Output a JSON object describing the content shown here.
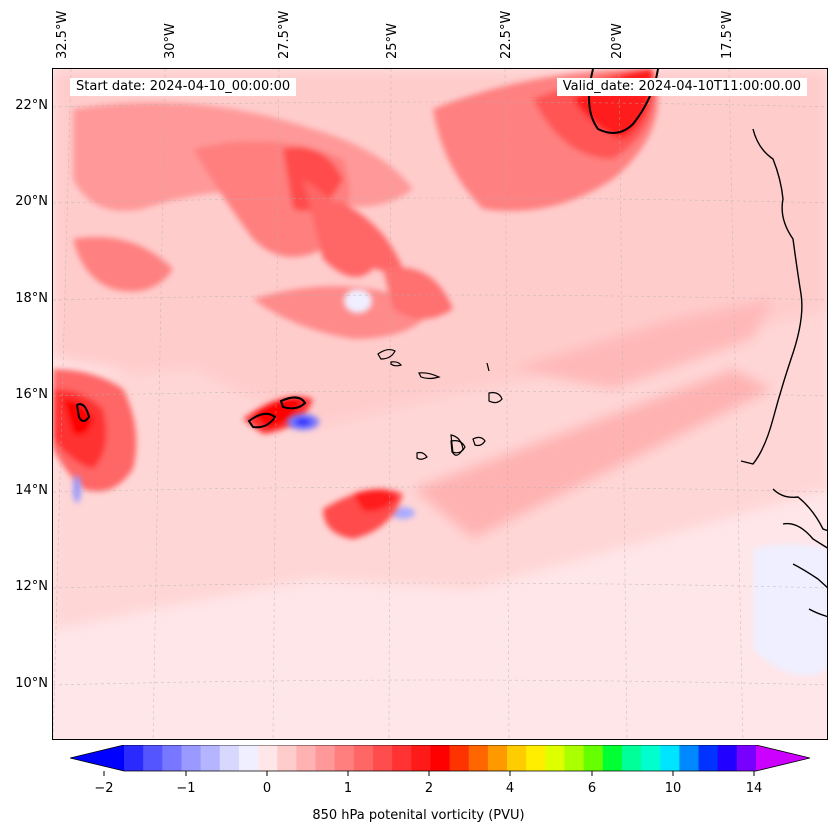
{
  "map": {
    "start_date": "Start date: 2024-04-10_00:00:00",
    "valid_date": "Valid_date: 2024-04-10T11:00:00.00",
    "lon_labels": [
      "32.5°W",
      "30°W",
      "27.5°W",
      "25°W",
      "22.5°W",
      "20°W",
      "17.5°W"
    ],
    "lat_labels": [
      "22°N",
      "20°N",
      "18°N",
      "16°N",
      "14°N",
      "12°N",
      "10°N"
    ],
    "projection": "lambert-conformal",
    "region": "Cape Verde / West African coast",
    "gridlines": true
  },
  "colorbar": {
    "label": "850 hPa potenital vorticity (PVU)",
    "ticks": [
      "−2",
      "−1",
      "0",
      "1",
      "2",
      "4",
      "6",
      "10",
      "14"
    ],
    "colors": [
      "#0000ff",
      "#2a2aff",
      "#5555ff",
      "#7777ff",
      "#9999ff",
      "#b5b5ff",
      "#d8d8ff",
      "#efefff",
      "#ffe6e8",
      "#ffcccc",
      "#ffb2b2",
      "#ff9999",
      "#ff7f7f",
      "#ff6666",
      "#ff4c4c",
      "#ff3333",
      "#ff1a1a",
      "#ff0000",
      "#ff3300",
      "#ff6600",
      "#ff9900",
      "#ffcc00",
      "#ffee00",
      "#ddff00",
      "#aaff00",
      "#66ff00",
      "#00ff33",
      "#00ff99",
      "#00ffcc",
      "#00e5ff",
      "#0088ff",
      "#0033ff",
      "#2200ff",
      "#7700ff",
      "#cc00ff"
    ],
    "extend": "both"
  }
}
